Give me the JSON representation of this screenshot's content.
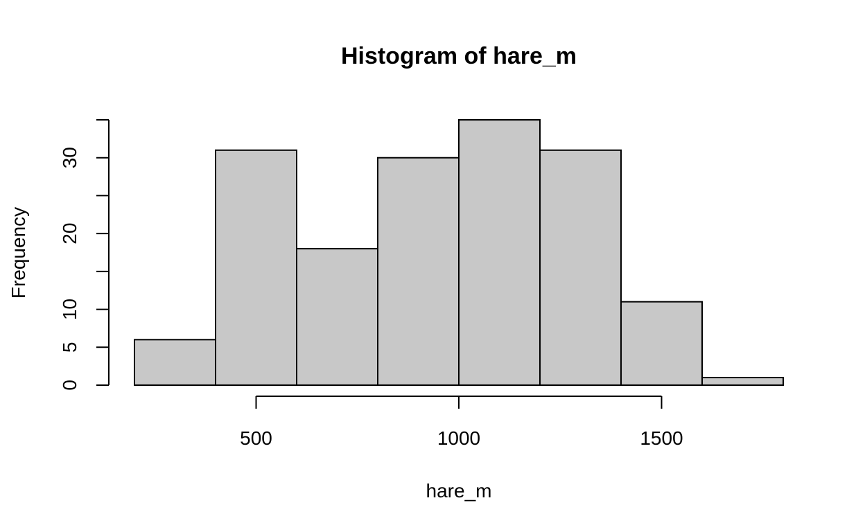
{
  "chart_data": {
    "type": "bar",
    "title": "Histogram of hare_m",
    "xlabel": "hare_m",
    "ylabel": "Frequency",
    "bins": [
      {
        "start": 200,
        "end": 400,
        "count": 6
      },
      {
        "start": 400,
        "end": 600,
        "count": 31
      },
      {
        "start": 600,
        "end": 800,
        "count": 18
      },
      {
        "start": 800,
        "end": 1000,
        "count": 30
      },
      {
        "start": 1000,
        "end": 1200,
        "count": 35
      },
      {
        "start": 1200,
        "end": 1400,
        "count": 31
      },
      {
        "start": 1400,
        "end": 1600,
        "count": 11
      },
      {
        "start": 1600,
        "end": 1800,
        "count": 1
      }
    ],
    "xticks": [
      500,
      1000,
      1500
    ],
    "xtick_labels": [
      "500",
      "1000",
      "1500"
    ],
    "yticks": [
      0,
      5,
      10,
      15,
      20,
      25,
      30,
      35
    ],
    "ytick_labels": [
      "0",
      "5",
      "10",
      "",
      "20",
      "",
      "30",
      ""
    ],
    "xlim": [
      200,
      1800
    ],
    "ylim": [
      0,
      35
    ],
    "bar_color": "#c8c8c8",
    "grid": false,
    "legend": "none"
  }
}
